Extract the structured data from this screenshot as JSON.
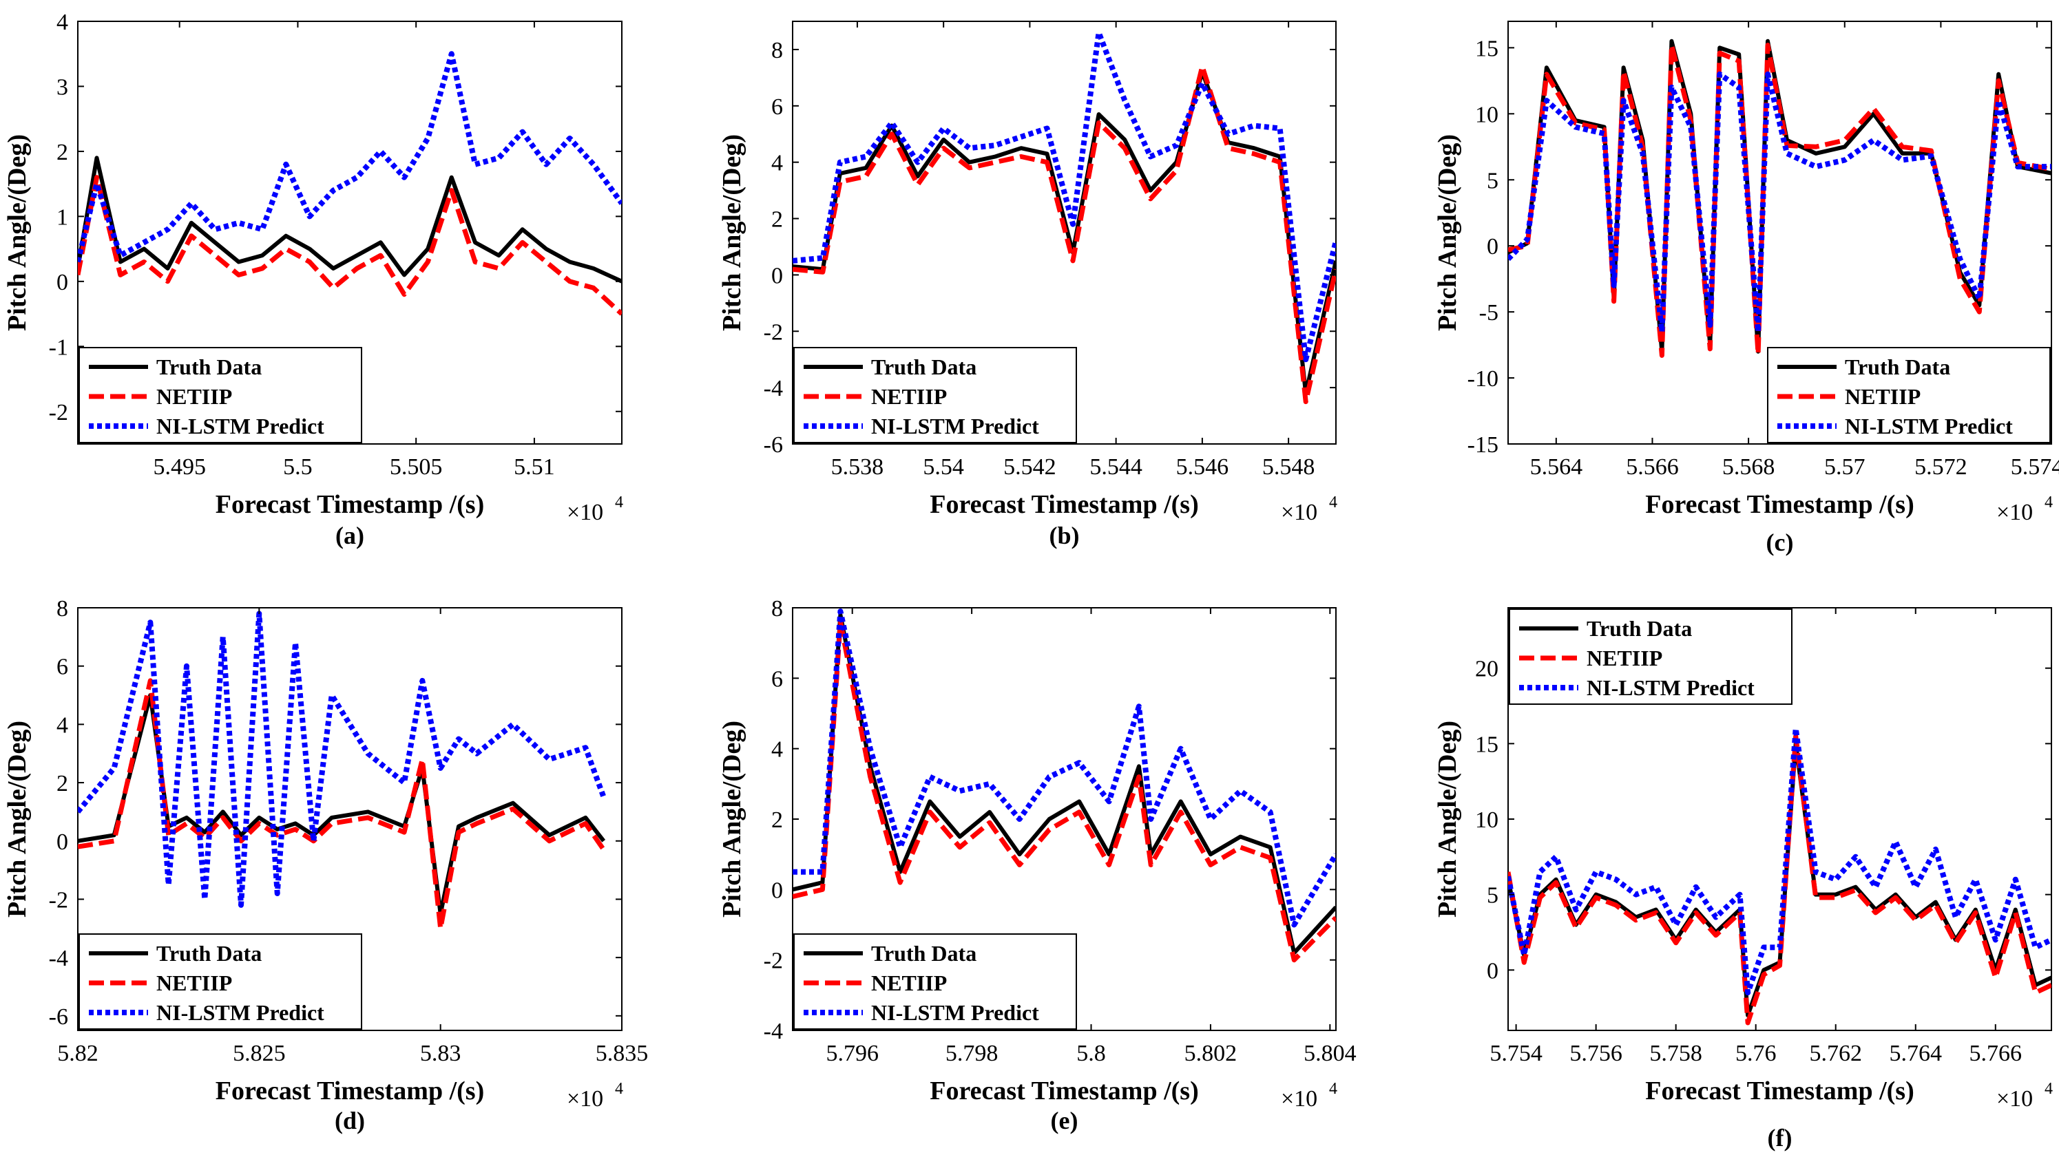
{
  "colors": {
    "truth": "#000000",
    "netiip": "#ff0000",
    "nilstm": "#0000ff"
  },
  "chart_data": [
    {
      "type": "line",
      "id": "a",
      "panel_label": "(a)",
      "xlabel": "Forecast Timestamp /(s)",
      "ylabel": "Pitch Angle/(Deg)",
      "x_multiplier": "×10",
      "x_multiplier_exp": "4",
      "xlim": [
        5.4907,
        5.5137
      ],
      "ylim": [
        -2.5,
        4
      ],
      "xticks": [
        5.495,
        5.5,
        5.505,
        5.51
      ],
      "xtick_labels": [
        "5.495",
        "5.5",
        "5.505",
        "5.51"
      ],
      "yticks": [
        -2,
        -1,
        0,
        1,
        2,
        3,
        4
      ],
      "ytick_labels": [
        "-2",
        "-1",
        "0",
        "1",
        "2",
        "3",
        "4"
      ],
      "legend": [
        "Truth Data",
        "NETIIP",
        "NI-LSTM Predict"
      ],
      "legend_position": "bottom-left",
      "x": [
        5.4907,
        5.4915,
        5.4925,
        5.4935,
        5.4945,
        5.4955,
        5.4965,
        5.4975,
        5.4985,
        5.4995,
        5.5005,
        5.5015,
        5.5025,
        5.5035,
        5.5045,
        5.5055,
        5.5065,
        5.5075,
        5.5085,
        5.5095,
        5.5105,
        5.5115,
        5.5125,
        5.5137
      ],
      "series": [
        {
          "name": "Truth Data",
          "values": [
            0.2,
            1.9,
            0.3,
            0.5,
            0.2,
            0.9,
            0.6,
            0.3,
            0.4,
            0.7,
            0.5,
            0.2,
            0.4,
            0.6,
            0.1,
            0.5,
            1.6,
            0.6,
            0.4,
            0.8,
            0.5,
            0.3,
            0.2,
            0.0
          ]
        },
        {
          "name": "NETIIP",
          "values": [
            0.1,
            1.6,
            0.1,
            0.3,
            0.0,
            0.7,
            0.4,
            0.1,
            0.2,
            0.5,
            0.3,
            -0.1,
            0.2,
            0.4,
            -0.2,
            0.3,
            1.4,
            0.3,
            0.2,
            0.6,
            0.3,
            0.0,
            -0.1,
            -0.5
          ]
        },
        {
          "name": "NI-LSTM Predict",
          "values": [
            0.3,
            1.5,
            0.4,
            0.6,
            0.8,
            1.2,
            0.8,
            0.9,
            0.8,
            1.8,
            1.0,
            1.4,
            1.6,
            2.0,
            1.6,
            2.2,
            3.5,
            1.8,
            1.9,
            2.3,
            1.8,
            2.2,
            1.8,
            1.2
          ]
        }
      ]
    },
    {
      "type": "line",
      "id": "b",
      "panel_label": "(b)",
      "xlabel": "Forecast Timestamp /(s)",
      "ylabel": "Pitch Angle/(Deg)",
      "x_multiplier": "×10",
      "x_multiplier_exp": "4",
      "xlim": [
        5.5365,
        5.5491
      ],
      "ylim": [
        -6,
        9
      ],
      "xticks": [
        5.538,
        5.54,
        5.542,
        5.544,
        5.546,
        5.548
      ],
      "xtick_labels": [
        "5.538",
        "5.54",
        "5.542",
        "5.544",
        "5.546",
        "5.548"
      ],
      "yticks": [
        -6,
        -4,
        -2,
        0,
        2,
        4,
        6,
        8
      ],
      "ytick_labels": [
        "-6",
        "-4",
        "-2",
        "0",
        "2",
        "4",
        "6",
        "8"
      ],
      "legend": [
        "Truth Data",
        "NETIIP",
        "NI-LSTM Predict"
      ],
      "legend_position": "bottom-left",
      "x": [
        5.5365,
        5.5372,
        5.5376,
        5.5382,
        5.5388,
        5.5394,
        5.54,
        5.5406,
        5.5412,
        5.5418,
        5.5424,
        5.543,
        5.5436,
        5.5442,
        5.5448,
        5.5454,
        5.546,
        5.5466,
        5.5472,
        5.5478,
        5.5484,
        5.5491
      ],
      "series": [
        {
          "name": "Truth Data",
          "values": [
            0.3,
            0.2,
            3.6,
            3.8,
            5.3,
            3.5,
            4.8,
            4.0,
            4.2,
            4.5,
            4.3,
            0.8,
            5.7,
            4.8,
            3.0,
            4.0,
            7.2,
            4.7,
            4.5,
            4.2,
            -4.2,
            0.5
          ]
        },
        {
          "name": "NETIIP",
          "values": [
            0.2,
            0.1,
            3.3,
            3.5,
            5.0,
            3.2,
            4.5,
            3.8,
            4.0,
            4.2,
            4.0,
            0.5,
            5.4,
            4.5,
            2.7,
            3.7,
            7.4,
            4.5,
            4.3,
            4.0,
            -4.5,
            0.2
          ]
        },
        {
          "name": "NI-LSTM Predict",
          "values": [
            0.5,
            0.6,
            4.0,
            4.2,
            5.4,
            4.0,
            5.2,
            4.5,
            4.6,
            4.9,
            5.2,
            1.8,
            8.6,
            6.2,
            4.2,
            4.6,
            6.8,
            5.0,
            5.3,
            5.2,
            -3.0,
            1.2
          ]
        }
      ]
    },
    {
      "type": "line",
      "id": "c",
      "panel_label": "(c)",
      "xlabel": "Forecast Timestamp /(s)",
      "ylabel": "Pitch Angle/(Deg)",
      "x_multiplier": "×10",
      "x_multiplier_exp": "4",
      "xlim": [
        5.563,
        5.5743
      ],
      "ylim": [
        -15,
        17
      ],
      "xticks": [
        5.564,
        5.566,
        5.568,
        5.57,
        5.572,
        5.574
      ],
      "xtick_labels": [
        "5.564",
        "5.566",
        "5.568",
        "5.57",
        "5.572",
        "5.574"
      ],
      "yticks": [
        -15,
        -10,
        -5,
        0,
        5,
        10,
        15
      ],
      "ytick_labels": [
        "-15",
        "-10",
        "-5",
        "0",
        "5",
        "10",
        "15"
      ],
      "legend": [
        "Truth Data",
        "NETIIP",
        "NI-LSTM Predict"
      ],
      "legend_position": "bottom-right",
      "x": [
        5.563,
        5.5634,
        5.5638,
        5.5644,
        5.565,
        5.5652,
        5.5654,
        5.5658,
        5.5662,
        5.5664,
        5.5668,
        5.5672,
        5.5674,
        5.5678,
        5.5682,
        5.5684,
        5.5688,
        5.5694,
        5.57,
        5.5706,
        5.5712,
        5.5718,
        5.5724,
        5.5728,
        5.5732,
        5.5736,
        5.5743
      ],
      "series": [
        {
          "name": "Truth Data",
          "values": [
            -0.5,
            0.2,
            13.5,
            9.5,
            9.0,
            -4.0,
            13.5,
            8.0,
            -8.0,
            15.5,
            10.0,
            -7.5,
            15.0,
            14.5,
            -8.0,
            15.5,
            8.0,
            7.0,
            7.5,
            10.0,
            7.0,
            7.0,
            -2.0,
            -4.5,
            13.0,
            6.0,
            5.5
          ]
        },
        {
          "name": "NETIIP",
          "values": [
            -0.3,
            0.0,
            13.0,
            9.3,
            8.8,
            -4.2,
            13.2,
            7.5,
            -8.3,
            15.2,
            9.5,
            -7.8,
            14.6,
            14.0,
            -8.2,
            15.2,
            7.6,
            7.5,
            8.0,
            10.4,
            7.5,
            7.2,
            -2.5,
            -5.0,
            12.5,
            6.3,
            5.8
          ]
        },
        {
          "name": "NI-LSTM Predict",
          "values": [
            -1.0,
            0.5,
            11.0,
            9.0,
            8.5,
            -3.0,
            11.0,
            7.0,
            -6.5,
            12.0,
            9.0,
            -6.0,
            13.0,
            12.0,
            -6.5,
            13.0,
            7.0,
            6.0,
            6.5,
            8.0,
            6.5,
            6.8,
            -1.0,
            -4.0,
            11.0,
            6.0,
            6.0
          ]
        }
      ]
    },
    {
      "type": "line",
      "id": "d",
      "panel_label": "(d)",
      "xlabel": "Forecast Timestamp /(s)",
      "ylabel": "Pitch Angle/(Deg)",
      "x_multiplier": "×10",
      "x_multiplier_exp": "4",
      "xlim": [
        5.82,
        5.835
      ],
      "ylim": [
        -6.5,
        8
      ],
      "xticks": [
        5.82,
        5.825,
        5.83,
        5.835
      ],
      "xtick_labels": [
        "5.82",
        "5.825",
        "5.83",
        "5.835"
      ],
      "yticks": [
        -6,
        -4,
        -2,
        0,
        2,
        4,
        6,
        8
      ],
      "ytick_labels": [
        "-6",
        "-4",
        "-2",
        "0",
        "2",
        "4",
        "6",
        "8"
      ],
      "legend": [
        "Truth Data",
        "NETIIP",
        "NI-LSTM Predict"
      ],
      "legend_position": "bottom-left",
      "x": [
        5.82,
        5.821,
        5.822,
        5.8225,
        5.823,
        5.8235,
        5.824,
        5.8245,
        5.825,
        5.8255,
        5.826,
        5.8265,
        5.827,
        5.828,
        5.829,
        5.8295,
        5.83,
        5.8305,
        5.831,
        5.832,
        5.833,
        5.834,
        5.8345
      ],
      "series": [
        {
          "name": "Truth Data",
          "values": [
            0.0,
            0.2,
            5.0,
            0.5,
            0.8,
            0.3,
            1.0,
            0.2,
            0.8,
            0.4,
            0.6,
            0.2,
            0.8,
            1.0,
            0.5,
            2.5,
            -2.5,
            0.5,
            0.8,
            1.3,
            0.2,
            0.8,
            0.0
          ]
        },
        {
          "name": "NETIIP",
          "values": [
            -0.2,
            0.0,
            5.5,
            0.2,
            0.6,
            0.1,
            0.8,
            0.0,
            0.6,
            0.2,
            0.4,
            0.0,
            0.6,
            0.8,
            0.3,
            2.8,
            -3.0,
            0.3,
            0.6,
            1.1,
            0.0,
            0.6,
            -0.3
          ]
        },
        {
          "name": "NI-LSTM Predict",
          "values": [
            1.0,
            2.5,
            7.5,
            -1.5,
            6.0,
            -2.0,
            7.0,
            -2.2,
            7.8,
            -1.8,
            6.8,
            0.0,
            5.0,
            3.0,
            2.0,
            5.5,
            2.5,
            3.5,
            3.0,
            4.0,
            2.8,
            3.2,
            1.5
          ]
        }
      ]
    },
    {
      "type": "line",
      "id": "e",
      "panel_label": "(e)",
      "xlabel": "Forecast Timestamp /(s)",
      "ylabel": "Pitch Angle/(Deg)",
      "x_multiplier": "×10",
      "x_multiplier_exp": "4",
      "xlim": [
        5.795,
        5.8041
      ],
      "ylim": [
        -4,
        8
      ],
      "xticks": [
        5.796,
        5.798,
        5.8,
        5.802,
        5.804
      ],
      "xtick_labels": [
        "5.796",
        "5.798",
        "5.8",
        "5.802",
        "5.804"
      ],
      "yticks": [
        -4,
        -2,
        0,
        2,
        4,
        6,
        8
      ],
      "ytick_labels": [
        "-4",
        "-2",
        "0",
        "2",
        "4",
        "6",
        "8"
      ],
      "legend": [
        "Truth Data",
        "NETIIP",
        "NI-LSTM Predict"
      ],
      "legend_position": "bottom-left",
      "x": [
        5.795,
        5.7955,
        5.7958,
        5.7963,
        5.7968,
        5.7973,
        5.7978,
        5.7983,
        5.7988,
        5.7993,
        5.7998,
        5.8003,
        5.8008,
        5.801,
        5.8015,
        5.802,
        5.8025,
        5.803,
        5.8034,
        5.8041
      ],
      "series": [
        {
          "name": "Truth Data",
          "values": [
            0.0,
            0.2,
            7.8,
            3.5,
            0.5,
            2.5,
            1.5,
            2.2,
            1.0,
            2.0,
            2.5,
            1.0,
            3.5,
            1.0,
            2.5,
            1.0,
            1.5,
            1.2,
            -1.8,
            -0.5
          ]
        },
        {
          "name": "NETIIP",
          "values": [
            -0.2,
            0.0,
            7.6,
            3.2,
            0.2,
            2.2,
            1.2,
            1.9,
            0.7,
            1.7,
            2.2,
            0.7,
            3.2,
            0.7,
            2.2,
            0.7,
            1.2,
            0.9,
            -2.0,
            -0.8
          ]
        },
        {
          "name": "NI-LSTM Predict",
          "values": [
            0.5,
            0.5,
            7.9,
            4.0,
            1.2,
            3.2,
            2.8,
            3.0,
            2.0,
            3.2,
            3.6,
            2.5,
            5.2,
            2.0,
            4.0,
            2.0,
            2.8,
            2.2,
            -1.0,
            1.0
          ]
        }
      ]
    },
    {
      "type": "line",
      "id": "f",
      "panel_label": "(f)",
      "xlabel": "Forecast Timestamp /(s)",
      "ylabel": "Pitch Angle/(Deg)",
      "x_multiplier": "×10",
      "x_multiplier_exp": "4",
      "xlim": [
        5.7538,
        5.7674
      ],
      "ylim": [
        -4,
        24
      ],
      "xticks": [
        5.754,
        5.756,
        5.758,
        5.76,
        5.762,
        5.764,
        5.766
      ],
      "xtick_labels": [
        "5.754",
        "5.756",
        "5.758",
        "5.76",
        "5.762",
        "5.764",
        "5.766"
      ],
      "yticks": [
        0,
        5,
        10,
        15,
        20
      ],
      "ytick_labels": [
        "0",
        "5",
        "10",
        "15",
        "20"
      ],
      "legend": [
        "Truth Data",
        "NETIIP",
        "NI-LSTM Predict"
      ],
      "legend_position": "top-left",
      "x": [
        5.7538,
        5.7542,
        5.7546,
        5.755,
        5.7555,
        5.756,
        5.7565,
        5.757,
        5.7575,
        5.758,
        5.7585,
        5.759,
        5.7596,
        5.7598,
        5.7602,
        5.7606,
        5.761,
        5.7615,
        5.762,
        5.7625,
        5.763,
        5.7635,
        5.764,
        5.7645,
        5.765,
        5.7655,
        5.766,
        5.7665,
        5.767,
        5.7674
      ],
      "series": [
        {
          "name": "Truth Data",
          "values": [
            6.0,
            1.0,
            5.0,
            6.0,
            3.0,
            5.0,
            4.5,
            3.5,
            4.0,
            2.0,
            4.0,
            2.5,
            4.0,
            -3.0,
            0.0,
            0.5,
            15.0,
            5.0,
            5.0,
            5.5,
            4.0,
            5.0,
            3.5,
            4.5,
            2.0,
            4.0,
            0.0,
            4.0,
            -1.0,
            -0.5
          ]
        },
        {
          "name": "NETIIP",
          "values": [
            6.5,
            0.5,
            4.8,
            5.8,
            2.8,
            4.8,
            4.3,
            3.3,
            3.8,
            1.8,
            3.8,
            2.3,
            3.8,
            -3.5,
            -0.3,
            0.3,
            15.5,
            4.8,
            4.8,
            5.3,
            3.8,
            4.8,
            3.3,
            4.3,
            1.8,
            3.8,
            -0.5,
            3.8,
            -1.5,
            -1.0
          ]
        },
        {
          "name": "NI-LSTM Predict",
          "values": [
            6.2,
            1.0,
            6.5,
            7.5,
            4.0,
            6.5,
            6.0,
            5.0,
            5.5,
            3.0,
            5.5,
            3.5,
            5.0,
            -1.5,
            1.5,
            1.5,
            16.0,
            6.5,
            6.0,
            7.5,
            5.5,
            8.5,
            5.5,
            8.0,
            3.5,
            6.0,
            2.0,
            6.0,
            1.5,
            2.0
          ]
        }
      ]
    }
  ]
}
